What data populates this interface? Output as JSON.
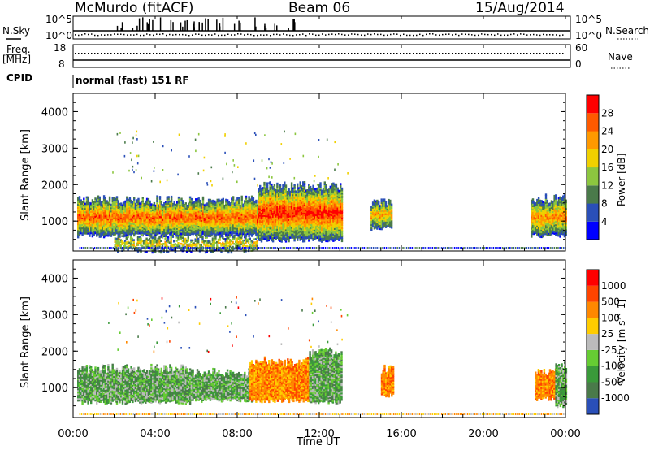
{
  "header": {
    "station": "McMurdo (fitACF)",
    "beam": "Beam 06",
    "date": "15/Aug/2014"
  },
  "status_panels": {
    "nsky_label": "N.Sky",
    "nsearch_label": "N.Search",
    "noise_ticks_left": [
      "10^5",
      "10^0"
    ],
    "noise_ticks_right": [
      "10^5",
      "10^0"
    ],
    "freq_label": "Freq.",
    "freq_unit": "[MHz]",
    "freq_ticks": [
      "18",
      "8"
    ],
    "nave_label": "Nave",
    "nave_ticks": [
      "60",
      "0"
    ],
    "cpid_label": "CPID",
    "cpid_text": "normal (fast) 151 RF"
  },
  "chart_data": [
    {
      "type": "heatmap",
      "title": "",
      "quantity": "Power",
      "xlabel": "",
      "ylabel": "Slant Range [km]",
      "y_ticks": [
        "1000",
        "2000",
        "3000",
        "4000"
      ],
      "ylim": [
        180,
        4500
      ],
      "xlim": [
        0,
        24
      ],
      "colorbar": {
        "label": "Power [dB]",
        "ticks": [
          "4",
          "8",
          "12",
          "16",
          "20",
          "24",
          "28"
        ],
        "colors": [
          "#0000ff",
          "#2a4fb8",
          "#4a7a4a",
          "#8cc63f",
          "#f0d000",
          "#ff9900",
          "#ff5a00",
          "#ff0000"
        ]
      },
      "echo_bands": [
        {
          "t0": 0.2,
          "t1": 9.0,
          "r_low": 600,
          "r_high": 1550,
          "level": 5.2
        },
        {
          "t0": 9.0,
          "t1": 13.1,
          "r_low": 480,
          "r_high": 1950,
          "level": 6.0
        },
        {
          "t0": 14.5,
          "t1": 15.5,
          "r_low": 800,
          "r_high": 1500,
          "level": 4.0
        },
        {
          "t0": 22.3,
          "t1": 24.0,
          "r_low": 600,
          "r_high": 1600,
          "level": 4.5
        },
        {
          "t0": 2.0,
          "t1": 9.0,
          "r_low": 180,
          "r_high": 550,
          "level": 3.5
        }
      ]
    },
    {
      "type": "heatmap",
      "title": "",
      "quantity": "Velocity",
      "xlabel": "Time UT",
      "ylabel": "Slant Range [km]",
      "x_ticks": [
        "00:00",
        "04:00",
        "08:00",
        "12:00",
        "16:00",
        "20:00",
        "00:00"
      ],
      "y_ticks": [
        "1000",
        "2000",
        "3000",
        "4000"
      ],
      "ylim": [
        180,
        4500
      ],
      "xlim": [
        0,
        24
      ],
      "colorbar": {
        "label": "Velocity [m s^-1]",
        "ticks": [
          "1000",
          "500",
          "100",
          "25",
          "-25",
          "-100",
          "-500",
          "-1000"
        ],
        "colors": [
          "#2a4fb8",
          "#4a7a4a",
          "#3a9a3a",
          "#66cc33",
          "#bbbbbb",
          "#ffcc00",
          "#ff8800",
          "#ff4400",
          "#ff0000"
        ]
      },
      "echo_bands": [
        {
          "t0": 0.2,
          "t1": 5.8,
          "r_low": 600,
          "r_high": 1500,
          "class": "green"
        },
        {
          "t0": 5.8,
          "t1": 8.8,
          "r_low": 650,
          "r_high": 1400,
          "class": "green"
        },
        {
          "t0": 8.6,
          "t1": 11.5,
          "r_low": 650,
          "r_high": 1700,
          "class": "orange"
        },
        {
          "t0": 11.5,
          "t1": 13.1,
          "r_low": 600,
          "r_high": 1950,
          "class": "green"
        },
        {
          "t0": 15.0,
          "t1": 15.6,
          "r_low": 800,
          "r_high": 1500,
          "class": "orange"
        },
        {
          "t0": 22.5,
          "t1": 23.5,
          "r_low": 700,
          "r_high": 1400,
          "class": "orange"
        },
        {
          "t0": 23.5,
          "t1": 24.0,
          "r_low": 500,
          "r_high": 1600,
          "class": "green"
        }
      ]
    }
  ]
}
